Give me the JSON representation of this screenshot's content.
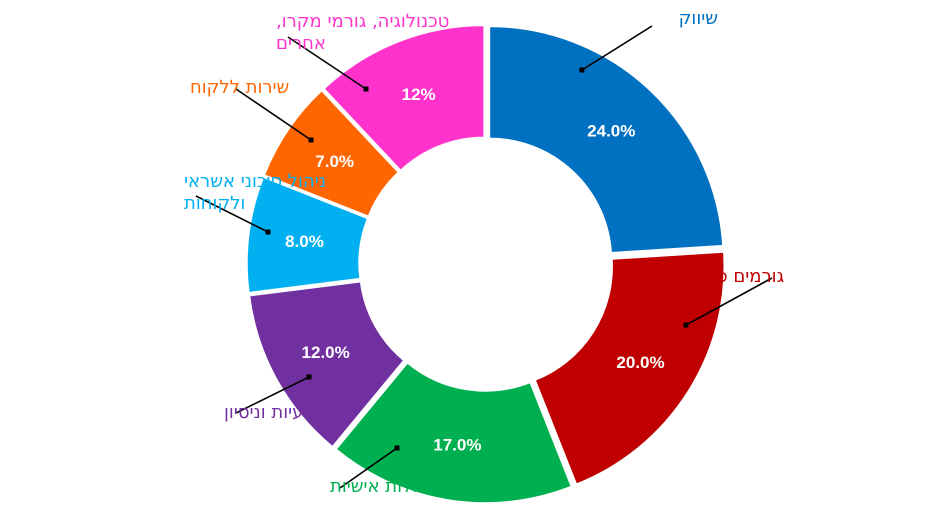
{
  "chart_data": {
    "type": "pie",
    "variant": "donut",
    "categories": [
      "שיווק",
      "גורמים פיננסיים",
      "ניהול ויכולות אישיות",
      "מקצועיות וניסיון",
      "ניהול סיכוני אשראי ולקוחות",
      "שירות ללקוח",
      "טכנולוגיה, גורמי מקרו, אחרים"
    ],
    "label_lines": [
      [
        "שיווק"
      ],
      [
        "גורמים פיננסיים"
      ],
      [
        "ניהול ויכולות אישיות"
      ],
      [
        "מקצועיות וניסיון"
      ],
      [
        "ניהול סיכוני אשראי",
        "ולקוחות"
      ],
      [
        "שירות ללקוח"
      ],
      [
        "טכנולוגיה, גורמי מקרו,",
        "אחרים"
      ]
    ],
    "values": [
      24.0,
      20.0,
      17.0,
      12.0,
      8.0,
      7.0,
      12.0
    ],
    "value_labels": [
      "24.0%",
      "20.0%",
      "17.0%",
      "12.0%",
      "8.0%",
      "7.0%",
      "12%"
    ],
    "colors": [
      "#0070C0",
      "#C00000",
      "#00B050",
      "#7030A0",
      "#00B0F0",
      "#FF6600",
      "#FF33CC"
    ],
    "start_angle_deg": 0,
    "direction": "clockwise",
    "legend": "none",
    "title": ""
  }
}
